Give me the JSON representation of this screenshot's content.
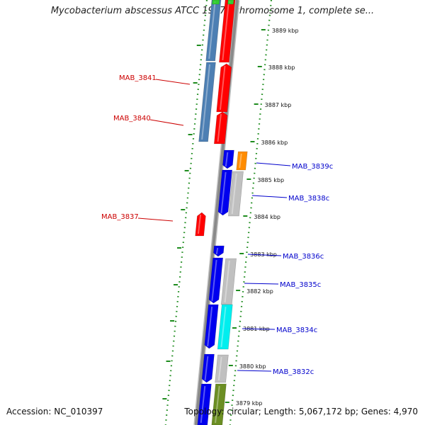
{
  "title": "Mycobacterium abscessus ATCC 19977 chromosome 1, complete se...",
  "footer": {
    "accession": "Accession: NC_010397",
    "summary": "Topology: circular; Length: 5,067,172 bp; Genes: 4,970"
  },
  "colors": {
    "backbone": "#8a8a8a",
    "dotted_ring": "#1e8c1e",
    "label_left": "#cc0000",
    "label_right": "#0000cc",
    "gene_steelblue": "#4d7fb3",
    "gene_red": "#ff0000",
    "gene_blue": "#0000ee",
    "gene_gray": "#c0c0c0",
    "gene_cyan": "#00eeee",
    "gene_orange": "#ff8c00",
    "gene_olive": "#6b8e23",
    "gene_green": "#33cc33"
  },
  "tick_labels": [
    "3889 kbp",
    "3888 kbp",
    "3887 kbp",
    "3886 kbp",
    "3885 kbp",
    "3884 kbp",
    "3883 kbp",
    "3882 kbp",
    "3881 kbp",
    "3880 kbp",
    "3879 kbp"
  ],
  "gene_labels_left": [
    "MAB_3841",
    "MAB_3840",
    "MAB_3837"
  ],
  "gene_labels_right": [
    "MAB_3839c",
    "MAB_3838c",
    "MAB_3836c",
    "MAB_3835c",
    "MAB_3834c",
    "MAB_3832c"
  ]
}
